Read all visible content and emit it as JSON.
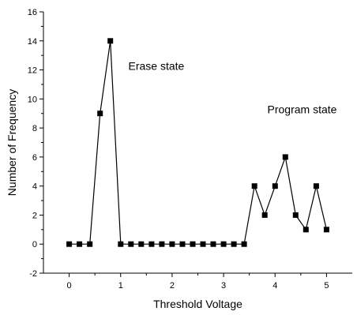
{
  "chart_data": {
    "type": "line",
    "title": "",
    "xlabel": "Threshold Voltage",
    "ylabel": "Number of Frequency",
    "xlim": [
      -0.5,
      5.5
    ],
    "ylim": [
      -2,
      16
    ],
    "x_ticks": [
      0,
      1,
      2,
      3,
      4,
      5
    ],
    "y_ticks": [
      -2,
      0,
      2,
      4,
      6,
      8,
      10,
      12,
      14,
      16
    ],
    "x_tick_labels": [
      "0",
      "1",
      "2",
      "3",
      "4",
      "5"
    ],
    "y_tick_labels": [
      "-2",
      "0",
      "2",
      "4",
      "6",
      "8",
      "10",
      "12",
      "14",
      "16"
    ],
    "grid": false,
    "line_color": "#000000",
    "marker": "square",
    "x": [
      0.0,
      0.2,
      0.4,
      0.6,
      0.8,
      1.0,
      1.2,
      1.4,
      1.6,
      1.8,
      2.0,
      2.2,
      2.4,
      2.6,
      2.8,
      3.0,
      3.2,
      3.4,
      3.6,
      3.8,
      4.0,
      4.2,
      4.4,
      4.6,
      4.8,
      5.0
    ],
    "y": [
      0,
      0,
      0,
      9,
      14,
      0,
      0,
      0,
      0,
      0,
      0,
      0,
      0,
      0,
      0,
      0,
      0,
      0,
      4,
      2,
      4,
      6,
      2,
      1,
      4,
      1
    ],
    "annotations": [
      {
        "text": "Erase state",
        "x": 1.15,
        "y": 12.0
      },
      {
        "text": "Program state",
        "x": 3.85,
        "y": 9.0
      }
    ]
  }
}
